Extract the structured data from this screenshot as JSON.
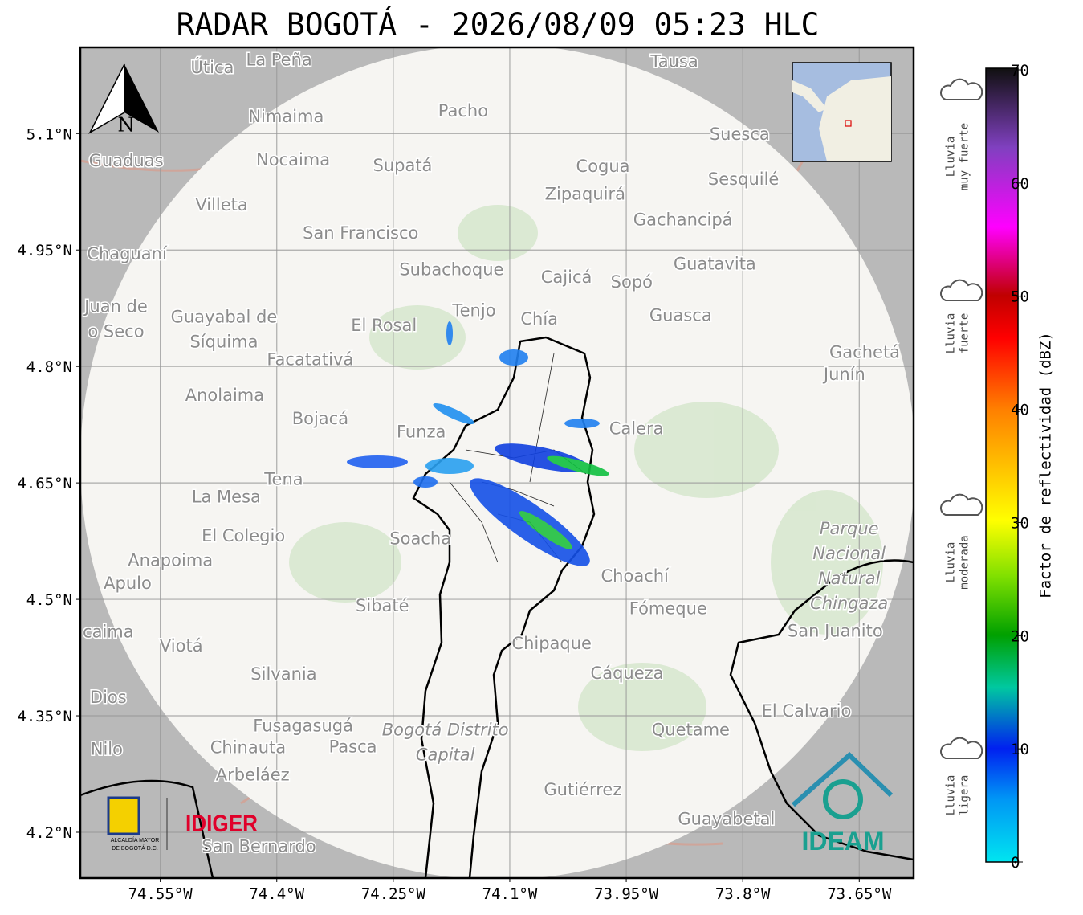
{
  "title": "RADAR BOGOTÁ - 2026/08/09 05:23 HLC",
  "map": {
    "lonlim": [
      -74.653,
      -73.58
    ],
    "latlim": [
      4.141,
      5.211
    ],
    "lon_ticks": [
      {
        "value": -74.55,
        "label": "74.55°W"
      },
      {
        "value": -74.4,
        "label": "74.4°W"
      },
      {
        "value": -74.25,
        "label": "74.25°W"
      },
      {
        "value": -74.1,
        "label": "74.1°W"
      },
      {
        "value": -73.95,
        "label": "73.95°W"
      },
      {
        "value": -73.8,
        "label": "73.8°W"
      },
      {
        "value": -73.65,
        "label": "73.65°W"
      }
    ],
    "lat_ticks": [
      {
        "value": 5.1,
        "label": "5.1°N"
      },
      {
        "value": 4.95,
        "label": "4.95°N"
      },
      {
        "value": 4.8,
        "label": "4.8°N"
      },
      {
        "value": 4.65,
        "label": "4.65°N"
      },
      {
        "value": 4.5,
        "label": "4.5°N"
      },
      {
        "value": 4.35,
        "label": "4.35°N"
      },
      {
        "value": 4.2,
        "label": "4.2°N"
      }
    ],
    "north_label": "N",
    "places": [
      {
        "name": "Útica",
        "lon": -74.483,
        "lat": 5.184
      },
      {
        "name": "La Peña",
        "lon": -74.397,
        "lat": 5.194
      },
      {
        "name": "Tausa",
        "lon": -73.888,
        "lat": 5.192
      },
      {
        "name": "Pacho",
        "lon": -74.16,
        "lat": 5.128
      },
      {
        "name": "Nimaima",
        "lon": -74.388,
        "lat": 5.121
      },
      {
        "name": "Guaduas",
        "lon": -74.594,
        "lat": 5.064
      },
      {
        "name": "Nocaima",
        "lon": -74.379,
        "lat": 5.065
      },
      {
        "name": "Supatá",
        "lon": -74.238,
        "lat": 5.058
      },
      {
        "name": "Cogua",
        "lon": -73.98,
        "lat": 5.057
      },
      {
        "name": "Suesca",
        "lon": -73.804,
        "lat": 5.098
      },
      {
        "name": "Sesquilé",
        "lon": -73.799,
        "lat": 5.04
      },
      {
        "name": "Villeta",
        "lon": -74.471,
        "lat": 5.007
      },
      {
        "name": "Zipaquirá",
        "lon": -74.003,
        "lat": 5.021
      },
      {
        "name": "Gachancipá",
        "lon": -73.877,
        "lat": 4.988
      },
      {
        "name": "San Francisco",
        "lon": -74.292,
        "lat": 4.971
      },
      {
        "name": "Chaguaní",
        "lon": -74.593,
        "lat": 4.944
      },
      {
        "name": "Guatavita",
        "lon": -73.836,
        "lat": 4.931
      },
      {
        "name": "Subachoque",
        "lon": -74.175,
        "lat": 4.924
      },
      {
        "name": "Cajicá",
        "lon": -74.027,
        "lat": 4.914
      },
      {
        "name": "Sopó",
        "lon": -73.943,
        "lat": 4.908
      },
      {
        "name": [
          "Guayabal de",
          "Síquima"
        ],
        "lon": -74.468,
        "lat": 4.847
      },
      {
        "name": [
          "Juan de",
          "o Seco"
        ],
        "lon": -74.607,
        "lat": 4.86
      },
      {
        "name": "Tenjo",
        "lon": -74.146,
        "lat": 4.871
      },
      {
        "name": "Chía",
        "lon": -74.062,
        "lat": 4.86
      },
      {
        "name": "Guasca",
        "lon": -73.88,
        "lat": 4.865
      },
      {
        "name": "El Rosal",
        "lon": -74.262,
        "lat": 4.852
      },
      {
        "name": "Gachetá",
        "lon": -73.643,
        "lat": 4.817
      },
      {
        "name": "Junín",
        "lon": -73.669,
        "lat": 4.789
      },
      {
        "name": "Facatativá",
        "lon": -74.357,
        "lat": 4.808
      },
      {
        "name": "Anolaima",
        "lon": -74.467,
        "lat": 4.762
      },
      {
        "name": "Bojacá",
        "lon": -74.344,
        "lat": 4.732
      },
      {
        "name": "Funza",
        "lon": -74.214,
        "lat": 4.715
      },
      {
        "name": "Calera",
        "lon": -73.937,
        "lat": 4.719
      },
      {
        "name": "Tena",
        "lon": -74.391,
        "lat": 4.654
      },
      {
        "name": "La Mesa",
        "lon": -74.465,
        "lat": 4.631
      },
      {
        "name": "El Colegio",
        "lon": -74.443,
        "lat": 4.581
      },
      {
        "name": "Soacha",
        "lon": -74.215,
        "lat": 4.577
      },
      {
        "name": "Anapoima",
        "lon": -74.537,
        "lat": 4.549
      },
      {
        "name": "Apulo",
        "lon": -74.592,
        "lat": 4.52
      },
      {
        "name": "Choachí",
        "lon": -73.939,
        "lat": 4.529
      },
      {
        "name": [
          "Parque",
          "Nacional",
          "Natural",
          "Chingaza"
        ],
        "lon": -73.663,
        "lat": 4.542,
        "color": "#8fb39a"
      },
      {
        "name": "Sibaté",
        "lon": -74.264,
        "lat": 4.491
      },
      {
        "name": "Fómeque",
        "lon": -73.896,
        "lat": 4.487
      },
      {
        "name": "San Juanito",
        "lon": -73.681,
        "lat": 4.458
      },
      {
        "name": "caima",
        "lon": -74.617,
        "lat": 4.457
      },
      {
        "name": "Viotá",
        "lon": -74.523,
        "lat": 4.439
      },
      {
        "name": "Chipaque",
        "lon": -74.046,
        "lat": 4.442
      },
      {
        "name": "Silvania",
        "lon": -74.391,
        "lat": 4.403
      },
      {
        "name": "Cáqueza",
        "lon": -73.949,
        "lat": 4.404
      },
      {
        "name": "Dios",
        "lon": -74.617,
        "lat": 4.373
      },
      {
        "name": "El Calvario",
        "lon": -73.718,
        "lat": 4.355
      },
      {
        "name": "Fusagasugá",
        "lon": -74.366,
        "lat": 4.336
      },
      {
        "name": [
          "Bogotá Distrito",
          "Capital"
        ],
        "lon": -74.183,
        "lat": 4.315,
        "color": "#b79ac8"
      },
      {
        "name": "Quetame",
        "lon": -73.867,
        "lat": 4.331
      },
      {
        "name": "Nilo",
        "lon": -74.619,
        "lat": 4.306
      },
      {
        "name": "Chinauta",
        "lon": -74.437,
        "lat": 4.308
      },
      {
        "name": "Pasca",
        "lon": -74.302,
        "lat": 4.309
      },
      {
        "name": "Arbeláez",
        "lon": -74.431,
        "lat": 4.273
      },
      {
        "name": "Gutiérrez",
        "lon": -74.006,
        "lat": 4.254
      },
      {
        "name": "Guayabetal",
        "lon": -73.821,
        "lat": 4.216
      },
      {
        "name": "San Bernardo",
        "lon": -74.423,
        "lat": 4.181
      }
    ]
  },
  "colorbar": {
    "label": "Factor de reflectividad (dBZ)",
    "lim": [
      0,
      70
    ],
    "ticks": [
      0,
      10,
      20,
      30,
      40,
      50,
      60,
      70
    ]
  },
  "rain_levels": [
    [
      "Lluvia",
      "ligera"
    ],
    [
      "Lluvia",
      "moderada"
    ],
    [
      "Lluvia",
      "fuerte"
    ],
    [
      "Lluvia",
      "muy fuerte"
    ]
  ],
  "logos": {
    "alcaldia": [
      "ALCALDÍA MAYOR",
      "DE BOGOTÁ D.C."
    ],
    "idiger": "IDIGER",
    "ideam": "IDEAM"
  }
}
